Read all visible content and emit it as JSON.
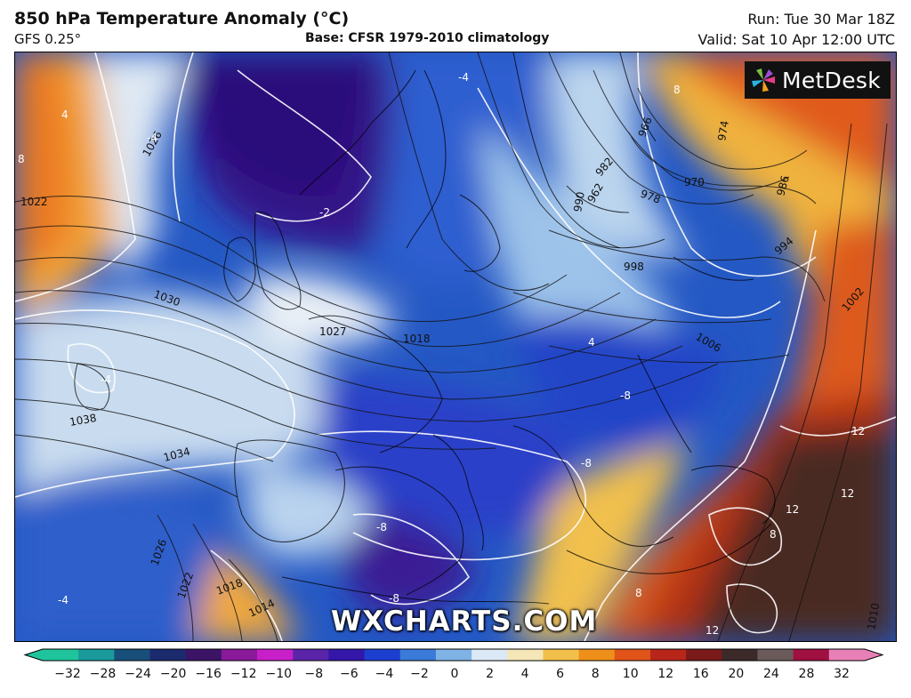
{
  "header": {
    "title": "850 hPa Temperature Anomaly (°C)",
    "model": "GFS 0.25°",
    "base": "Base: CFSR 1979-2010 climatology",
    "run": "Run: Tue 30 Mar 18Z",
    "valid": "Valid: Sat 10 Apr 12:00 UTC"
  },
  "branding": {
    "logo_text": "MetDesk",
    "watermark": "WXCHARTS.COM"
  },
  "isobar_labels": [
    "1022",
    "1026",
    "1030",
    "1027",
    "1018",
    "1038",
    "1034",
    "1026",
    "1022",
    "1018",
    "1014",
    "1010",
    "1006",
    "1002",
    "998",
    "994",
    "986",
    "982",
    "978",
    "974",
    "970",
    "966",
    "962",
    "990"
  ],
  "anomaly_labels": [
    "-4",
    "-4",
    "-2",
    "-4",
    "-8",
    "-8",
    "-8",
    "-8",
    "4",
    "8",
    "8",
    "8",
    "8",
    "12",
    "12",
    "12",
    "12",
    "-4",
    "4"
  ],
  "colorbar": {
    "labels": [
      "−32",
      "−28",
      "−24",
      "−20",
      "−16",
      "−12",
      "−10",
      "−8",
      "−6",
      "−4",
      "−2",
      "0",
      "2",
      "4",
      "6",
      "8",
      "10",
      "12",
      "16",
      "20",
      "24",
      "28",
      "32"
    ],
    "colors": [
      "#1fc49c",
      "#1a9a9a",
      "#184f7a",
      "#1c2a6e",
      "#3b1466",
      "#8a1a9a",
      "#c81fc8",
      "#5a24a8",
      "#3416a8",
      "#1c3fd0",
      "#3a7ad8",
      "#7fb3e6",
      "#dbe9f6",
      "#f5e6b8",
      "#f2c04a",
      "#ee8f1a",
      "#e0541a",
      "#b8261a",
      "#7a1a1a",
      "#3c2a2a",
      "#6a5a5a",
      "#a01040",
      "#e880b8"
    ]
  }
}
